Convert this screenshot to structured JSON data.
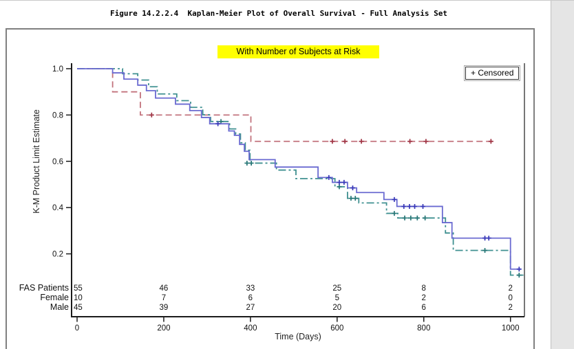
{
  "page": {
    "figure_title": "Figure 14.2.2.4  Kaplan-Meier Plot of Overall Survival - Full Analysis Set"
  },
  "chart": {
    "subtitle": "With Number of Subjects at Risk",
    "subtitle_highlight_color": "#ffff00",
    "legend_label": "+ Censored",
    "ylabel": "K-M Product Limit Estimate",
    "xlabel": "Time (Days)"
  },
  "chart_data": {
    "type": "line",
    "subtype": "kaplan-meier-step",
    "title": "With Number of Subjects at Risk",
    "xlabel": "Time (Days)",
    "ylabel": "K-M Product Limit Estimate",
    "xlim": [
      0,
      1050
    ],
    "ylim": [
      0.08,
      1.02
    ],
    "grid": false,
    "legend_position": "top-right",
    "x_ticks": [
      0,
      200,
      400,
      600,
      800,
      1000
    ],
    "y_ticks": [
      1.0,
      0.8,
      0.6,
      0.4,
      0.2
    ],
    "series": [
      {
        "name": "Female",
        "color": "#c2727c",
        "marker_color": "#a03545",
        "line_style": "dash",
        "steps": [
          [
            0,
            1.0
          ],
          [
            82,
            0.9
          ],
          [
            146,
            0.8
          ],
          [
            401,
            0.686
          ],
          [
            958,
            0.686
          ]
        ],
        "censors": [
          [
            172,
            0.8
          ],
          [
            589,
            0.686
          ],
          [
            618,
            0.686
          ],
          [
            656,
            0.686
          ],
          [
            768,
            0.686
          ],
          [
            805,
            0.686
          ],
          [
            955,
            0.686
          ]
        ]
      },
      {
        "name": "Male",
        "color": "#3f9090",
        "marker_color": "#257575",
        "line_style": "dashdot",
        "steps": [
          [
            0,
            1.0
          ],
          [
            105,
            0.978
          ],
          [
            140,
            0.951
          ],
          [
            165,
            0.922
          ],
          [
            185,
            0.891
          ],
          [
            230,
            0.862
          ],
          [
            262,
            0.833
          ],
          [
            290,
            0.801
          ],
          [
            308,
            0.772
          ],
          [
            352,
            0.74
          ],
          [
            366,
            0.718
          ],
          [
            377,
            0.68
          ],
          [
            388,
            0.648
          ],
          [
            399,
            0.592
          ],
          [
            460,
            0.562
          ],
          [
            505,
            0.525
          ],
          [
            595,
            0.49
          ],
          [
            624,
            0.44
          ],
          [
            650,
            0.42
          ],
          [
            714,
            0.375
          ],
          [
            740,
            0.355
          ],
          [
            850,
            0.29
          ],
          [
            868,
            0.215
          ],
          [
            1000,
            0.108
          ],
          [
            1030,
            0.108
          ]
        ],
        "censors": [
          [
            332,
            0.772
          ],
          [
            392,
            0.592
          ],
          [
            402,
            0.592
          ],
          [
            605,
            0.49
          ],
          [
            632,
            0.44
          ],
          [
            642,
            0.44
          ],
          [
            732,
            0.375
          ],
          [
            756,
            0.355
          ],
          [
            770,
            0.355
          ],
          [
            785,
            0.355
          ],
          [
            803,
            0.355
          ],
          [
            941,
            0.215
          ],
          [
            1020,
            0.108
          ]
        ]
      },
      {
        "name": "FAS Patients",
        "color": "#6a6ad1",
        "marker_color": "#3838b8",
        "line_style": "solid",
        "steps": [
          [
            0,
            1.0
          ],
          [
            82,
            0.982
          ],
          [
            108,
            0.955
          ],
          [
            140,
            0.929
          ],
          [
            160,
            0.905
          ],
          [
            181,
            0.873
          ],
          [
            227,
            0.847
          ],
          [
            260,
            0.819
          ],
          [
            287,
            0.789
          ],
          [
            306,
            0.762
          ],
          [
            350,
            0.731
          ],
          [
            363,
            0.712
          ],
          [
            375,
            0.673
          ],
          [
            386,
            0.643
          ],
          [
            397,
            0.607
          ],
          [
            457,
            0.575
          ],
          [
            556,
            0.53
          ],
          [
            589,
            0.509
          ],
          [
            624,
            0.485
          ],
          [
            645,
            0.465
          ],
          [
            708,
            0.435
          ],
          [
            738,
            0.405
          ],
          [
            843,
            0.335
          ],
          [
            865,
            0.268
          ],
          [
            1000,
            0.134
          ],
          [
            1025,
            0.134
          ]
        ],
        "censors": [
          [
            325,
            0.762
          ],
          [
            581,
            0.53
          ],
          [
            605,
            0.509
          ],
          [
            616,
            0.509
          ],
          [
            636,
            0.485
          ],
          [
            732,
            0.435
          ],
          [
            754,
            0.405
          ],
          [
            767,
            0.405
          ],
          [
            779,
            0.405
          ],
          [
            798,
            0.405
          ],
          [
            941,
            0.268
          ],
          [
            950,
            0.268
          ],
          [
            1020,
            0.134
          ]
        ]
      }
    ],
    "at_risk": {
      "times": [
        0,
        200,
        400,
        600,
        800,
        1000
      ],
      "rows": [
        {
          "label": "FAS Patients",
          "color": "#333e75",
          "values": [
            "55",
            "46",
            "33",
            "25",
            "8",
            "2"
          ]
        },
        {
          "label": "Female",
          "color": "#9c3f4a",
          "values": [
            "10",
            "7",
            "6",
            "5",
            "2",
            "0"
          ]
        },
        {
          "label": "Male",
          "color": "#2c7a78",
          "values": [
            "45",
            "39",
            "27",
            "20",
            "6",
            "2"
          ]
        }
      ]
    }
  }
}
